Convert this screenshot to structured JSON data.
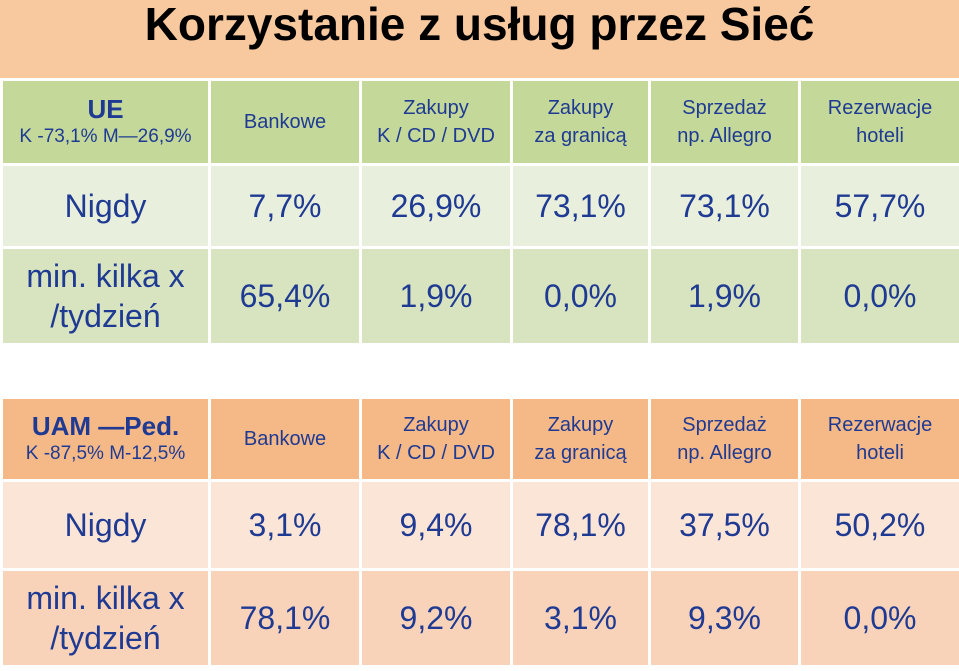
{
  "title": "Korzystanie z usług przez Sieć",
  "section1": {
    "corner_title": "UE",
    "corner_sub": "K -73,1% M—26,9%",
    "columns": [
      {
        "line1": "Bankowe",
        "line2": ""
      },
      {
        "line1": "Zakupy",
        "line2": "K / CD / DVD"
      },
      {
        "line1": "Zakupy",
        "line2": "za granicą"
      },
      {
        "line1": "Sprzedaż",
        "line2": "np. Allegro"
      },
      {
        "line1": "Rezerwacje",
        "line2": "hoteli"
      }
    ],
    "rows": [
      {
        "label1": "Nigdy",
        "label2": "",
        "values": [
          "7,7%",
          "26,9%",
          "73,1%",
          "73,1%",
          "57,7%"
        ]
      },
      {
        "label1": "min. kilka x",
        "label2": "/tydzień",
        "values": [
          "65,4%",
          "1,9%",
          "0,0%",
          "1,9%",
          "0,0%"
        ]
      }
    ]
  },
  "section2": {
    "corner_title": "UAM —Ped.",
    "corner_sub": "K -87,5% M-12,5%",
    "columns": [
      {
        "line1": "Bankowe",
        "line2": ""
      },
      {
        "line1": "Zakupy",
        "line2": "K / CD / DVD"
      },
      {
        "line1": "Zakupy",
        "line2": "za granicą"
      },
      {
        "line1": "Sprzedaż",
        "line2": "np. Allegro"
      },
      {
        "line1": "Rezerwacje",
        "line2": "hoteli"
      }
    ],
    "rows": [
      {
        "label1": "Nigdy",
        "label2": "",
        "values": [
          "3,1%",
          "9,4%",
          "78,1%",
          "37,5%",
          "50,2%"
        ]
      },
      {
        "label1": "min. kilka x",
        "label2": "/tydzień",
        "values": [
          "78,1%",
          "9,2%",
          "3,1%",
          "9,3%",
          "0,0%"
        ]
      }
    ]
  }
}
